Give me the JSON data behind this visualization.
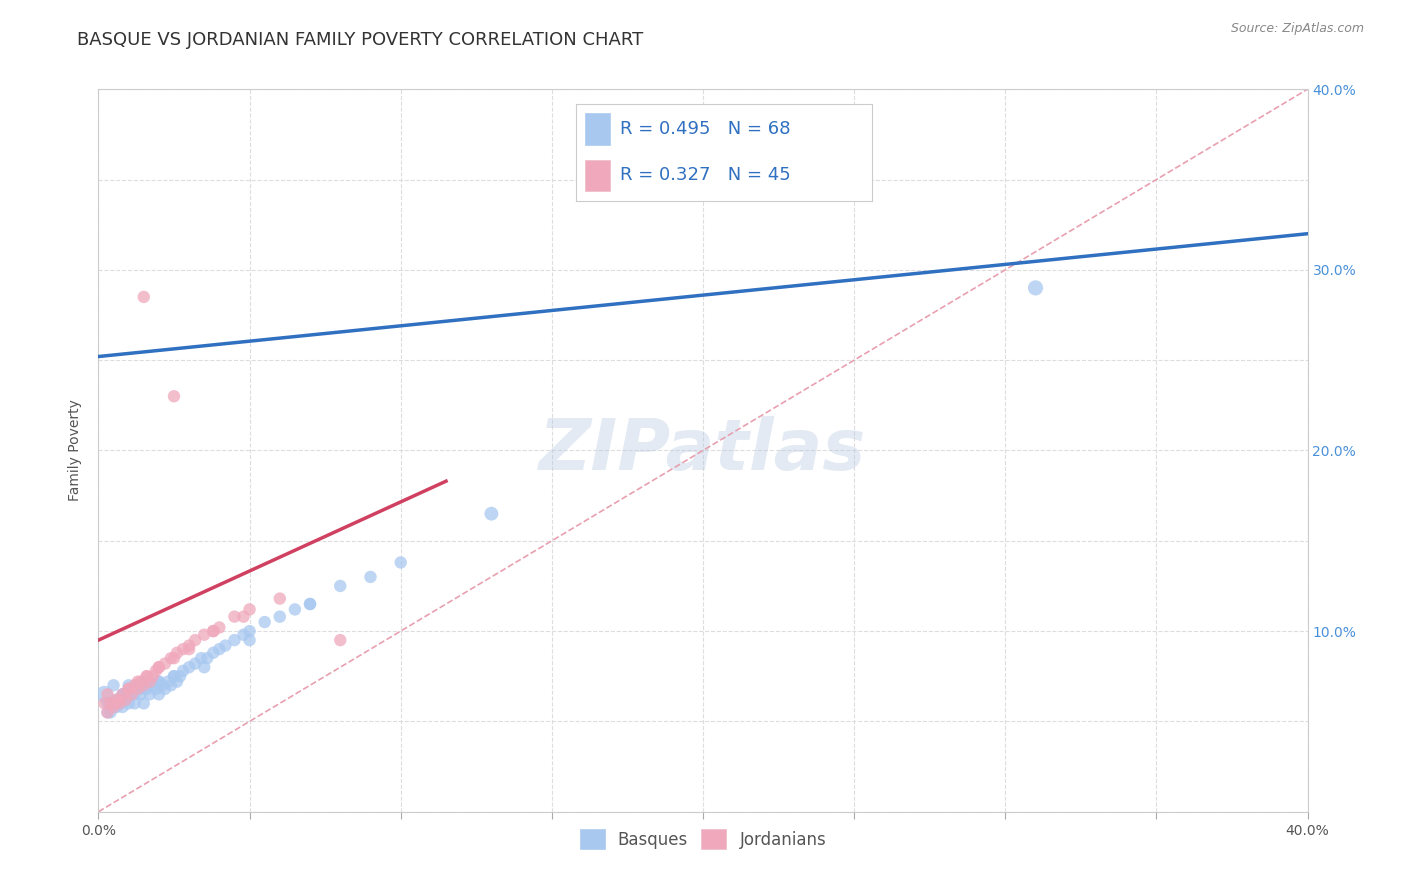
{
  "title": "BASQUE VS JORDANIAN FAMILY POVERTY CORRELATION CHART",
  "source_text": "Source: ZipAtlas.com",
  "ylabel": "Family Poverty",
  "xlim": [
    0.0,
    0.4
  ],
  "ylim": [
    0.0,
    0.4
  ],
  "xticks": [
    0.0,
    0.05,
    0.1,
    0.15,
    0.2,
    0.25,
    0.3,
    0.35,
    0.4
  ],
  "yticks": [
    0.0,
    0.05,
    0.1,
    0.15,
    0.2,
    0.25,
    0.3,
    0.35,
    0.4
  ],
  "basque_color": "#A8C8F0",
  "jordanian_color": "#F0A8BC",
  "basque_line_color": "#3070C0",
  "jordanian_line_color": "#D04060",
  "ref_line_color": "#E8A0B0",
  "R_basque": 0.495,
  "N_basque": 68,
  "R_jordanian": 0.327,
  "N_jordanian": 45,
  "watermark": "ZIPatlas",
  "background_color": "#FFFFFF",
  "title_fontsize": 13,
  "axis_label_fontsize": 10,
  "tick_fontsize": 10,
  "legend_fontsize": 13,
  "right_tick_color": "#4A90D9",
  "basque_line_x0": 0.0,
  "basque_line_y0": 0.252,
  "basque_line_x1": 0.4,
  "basque_line_y1": 0.32,
  "jordanian_line_x0": 0.0,
  "jordanian_line_y0": 0.095,
  "jordanian_line_x1": 0.115,
  "jordanian_line_y1": 0.183,
  "basque_x": [
    0.002,
    0.003,
    0.004,
    0.005,
    0.005,
    0.006,
    0.007,
    0.008,
    0.008,
    0.009,
    0.01,
    0.01,
    0.011,
    0.012,
    0.012,
    0.013,
    0.014,
    0.015,
    0.015,
    0.016,
    0.017,
    0.018,
    0.019,
    0.02,
    0.02,
    0.021,
    0.022,
    0.023,
    0.024,
    0.025,
    0.026,
    0.027,
    0.028,
    0.03,
    0.032,
    0.034,
    0.036,
    0.038,
    0.04,
    0.042,
    0.045,
    0.048,
    0.05,
    0.055,
    0.06,
    0.065,
    0.07,
    0.08,
    0.09,
    0.1,
    0.003,
    0.004,
    0.005,
    0.006,
    0.007,
    0.008,
    0.009,
    0.01,
    0.012,
    0.014,
    0.016,
    0.02,
    0.025,
    0.035,
    0.05,
    0.07,
    0.13,
    0.31
  ],
  "basque_y": [
    0.065,
    0.06,
    0.055,
    0.07,
    0.06,
    0.058,
    0.062,
    0.065,
    0.058,
    0.063,
    0.07,
    0.06,
    0.065,
    0.068,
    0.06,
    0.07,
    0.065,
    0.072,
    0.06,
    0.068,
    0.065,
    0.07,
    0.068,
    0.072,
    0.065,
    0.07,
    0.068,
    0.072,
    0.07,
    0.075,
    0.072,
    0.075,
    0.078,
    0.08,
    0.082,
    0.085,
    0.085,
    0.088,
    0.09,
    0.092,
    0.095,
    0.098,
    0.1,
    0.105,
    0.108,
    0.112,
    0.115,
    0.125,
    0.13,
    0.138,
    0.055,
    0.06,
    0.058,
    0.062,
    0.06,
    0.065,
    0.062,
    0.068,
    0.065,
    0.068,
    0.07,
    0.072,
    0.075,
    0.08,
    0.095,
    0.115,
    0.165,
    0.29
  ],
  "basque_sizes": [
    150,
    80,
    80,
    80,
    80,
    80,
    80,
    80,
    80,
    80,
    80,
    80,
    80,
    80,
    80,
    80,
    80,
    80,
    80,
    80,
    80,
    80,
    80,
    80,
    80,
    80,
    80,
    80,
    80,
    80,
    80,
    80,
    80,
    80,
    80,
    80,
    80,
    80,
    80,
    80,
    80,
    80,
    80,
    80,
    80,
    80,
    80,
    80,
    80,
    80,
    80,
    80,
    80,
    80,
    80,
    80,
    80,
    80,
    80,
    80,
    80,
    80,
    80,
    80,
    80,
    80,
    100,
    120
  ],
  "jordanian_x": [
    0.002,
    0.003,
    0.004,
    0.005,
    0.006,
    0.007,
    0.008,
    0.009,
    0.01,
    0.011,
    0.012,
    0.013,
    0.014,
    0.015,
    0.016,
    0.017,
    0.018,
    0.019,
    0.02,
    0.022,
    0.024,
    0.026,
    0.028,
    0.03,
    0.032,
    0.035,
    0.038,
    0.04,
    0.045,
    0.05,
    0.003,
    0.005,
    0.007,
    0.01,
    0.013,
    0.016,
    0.02,
    0.025,
    0.03,
    0.038,
    0.048,
    0.06,
    0.08,
    0.015,
    0.025
  ],
  "jordanian_y": [
    0.06,
    0.065,
    0.06,
    0.058,
    0.062,
    0.06,
    0.065,
    0.062,
    0.068,
    0.065,
    0.07,
    0.068,
    0.072,
    0.07,
    0.075,
    0.072,
    0.075,
    0.078,
    0.08,
    0.082,
    0.085,
    0.088,
    0.09,
    0.092,
    0.095,
    0.098,
    0.1,
    0.102,
    0.108,
    0.112,
    0.055,
    0.06,
    0.062,
    0.068,
    0.072,
    0.075,
    0.08,
    0.085,
    0.09,
    0.1,
    0.108,
    0.118,
    0.095,
    0.285,
    0.23
  ],
  "jordanian_sizes": [
    80,
    80,
    80,
    80,
    80,
    80,
    80,
    80,
    80,
    80,
    80,
    80,
    80,
    80,
    80,
    80,
    80,
    80,
    80,
    80,
    80,
    80,
    80,
    80,
    80,
    80,
    80,
    80,
    80,
    80,
    80,
    80,
    80,
    80,
    80,
    80,
    80,
    80,
    80,
    80,
    80,
    80,
    80,
    80,
    80
  ]
}
